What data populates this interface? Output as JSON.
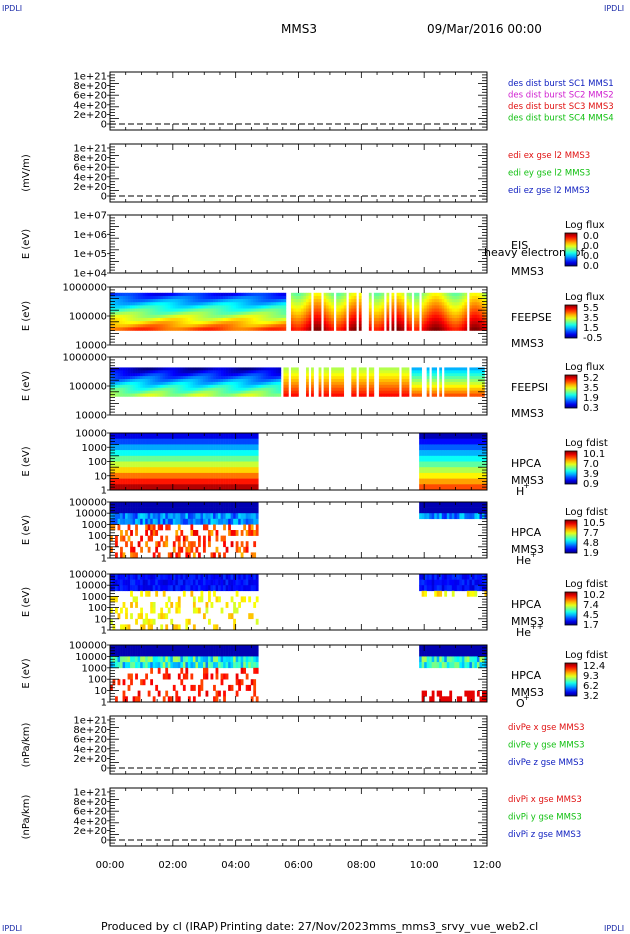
{
  "header": {
    "corner_label": "IPDLI",
    "mission": "MMS3",
    "date_time": "09/Mar/2016 00:00"
  },
  "footer": {
    "produced_by": "Produced by cl (IRAP)",
    "printing_date": "Printing date: 27/Nov/2023",
    "filename": "mms_mms3_srvy_vue_web2.cl"
  },
  "colors": {
    "red": "#e01010",
    "magenta": "#d020d0",
    "green": "#10c010",
    "blue": "#1020c0"
  },
  "chart_data": [
    {
      "type": "line",
      "ylabel": "",
      "yticks": [
        "1e+21",
        "8e+20",
        "6e+20",
        "4e+20",
        "2e+20",
        "0"
      ],
      "legend": [
        {
          "text": "des dist burst SC1 MMS1",
          "color": "#1020c0"
        },
        {
          "text": "des dist burst SC2 MMS2",
          "color": "#d020d0"
        },
        {
          "text": "des dist burst SC3 MMS3",
          "color": "#e01010"
        },
        {
          "text": "des dist burst SC4 MMS4",
          "color": "#10c010"
        }
      ]
    },
    {
      "type": "line",
      "ylabel": "(mV/m)",
      "yticks": [
        "1e+21",
        "8e+20",
        "6e+20",
        "4e+20",
        "2e+20",
        "0"
      ],
      "legend": [
        {
          "text": "edi ex gse l2 MMS3",
          "color": "#e01010"
        },
        {
          "text": "edi ey gse l2 MMS3",
          "color": "#10c010"
        },
        {
          "text": "edi ez gse l2 MMS3",
          "color": "#1020c0"
        }
      ]
    },
    {
      "type": "heatmap",
      "ylabel": "E (eV)",
      "yticks": [
        "1e+07",
        "1e+06",
        "1e+05",
        "1e+04"
      ],
      "instrument": "EIS",
      "extra": "heavy electron tof",
      "spacecraft": "MMS3",
      "cbar_title": "Log flux",
      "cbar_ticks": [
        "0.0",
        "0.0",
        "0.0",
        "0.0"
      ]
    },
    {
      "type": "heatmap",
      "ylabel": "E (eV)",
      "yticks": [
        "1000000",
        "100000",
        "10000"
      ],
      "instrument": "FEEPSE",
      "spacecraft": "MMS3",
      "cbar_title": "Log flux",
      "cbar_ticks": [
        "5.5",
        "3.5",
        "1.5",
        "-0.5"
      ]
    },
    {
      "type": "heatmap",
      "ylabel": "E (eV)",
      "yticks": [
        "1000000",
        "100000",
        "10000"
      ],
      "instrument": "FEEPSI",
      "spacecraft": "MMS3",
      "cbar_title": "Log flux",
      "cbar_ticks": [
        "5.2",
        "3.5",
        "1.9",
        "0.3"
      ]
    },
    {
      "type": "heatmap",
      "ylabel": "E (eV)",
      "yticks": [
        "10000",
        "1000",
        "100",
        "10",
        "1"
      ],
      "instrument": "HPCA",
      "spacecraft": "MMS3",
      "species": "H",
      "species_sup": "+",
      "cbar_title": "Log fdist",
      "cbar_ticks": [
        "10.1",
        "7.0",
        "3.9",
        "0.9"
      ]
    },
    {
      "type": "heatmap",
      "ylabel": "E (eV)",
      "yticks": [
        "100000",
        "10000",
        "1000",
        "100",
        "10",
        "1"
      ],
      "instrument": "HPCA",
      "spacecraft": "MMS3",
      "species": "He",
      "species_sup": "+",
      "cbar_title": "Log fdist",
      "cbar_ticks": [
        "10.5",
        "7.7",
        "4.8",
        "1.9"
      ]
    },
    {
      "type": "heatmap",
      "ylabel": "E (eV)",
      "yticks": [
        "100000",
        "10000",
        "1000",
        "100",
        "10",
        "1"
      ],
      "instrument": "HPCA",
      "spacecraft": "MMS3",
      "species": "He",
      "species_sup": "++",
      "cbar_title": "Log fdist",
      "cbar_ticks": [
        "10.2",
        "7.4",
        "4.5",
        "1.7"
      ]
    },
    {
      "type": "heatmap",
      "ylabel": "E (eV)",
      "yticks": [
        "100000",
        "10000",
        "1000",
        "100",
        "10",
        "1"
      ],
      "instrument": "HPCA",
      "spacecraft": "MMS3",
      "species": "O",
      "species_sup": "+",
      "cbar_title": "Log fdist",
      "cbar_ticks": [
        "12.4",
        "9.3",
        "6.2",
        "3.2"
      ]
    },
    {
      "type": "line",
      "ylabel": "(nPa/km)",
      "yticks": [
        "1e+21",
        "8e+20",
        "6e+20",
        "4e+20",
        "2e+20",
        "0"
      ],
      "legend": [
        {
          "text": "divPe x gse MMS3",
          "color": "#e01010"
        },
        {
          "text": "divPe y gse MMS3",
          "color": "#10c010"
        },
        {
          "text": "divPe z gse MMS3",
          "color": "#1020c0"
        }
      ]
    },
    {
      "type": "line",
      "ylabel": "(nPa/km)",
      "yticks": [
        "1e+21",
        "8e+20",
        "6e+20",
        "4e+20",
        "2e+20",
        "0"
      ],
      "legend": [
        {
          "text": "divPi x gse MMS3",
          "color": "#e01010"
        },
        {
          "text": "divPi y gse MMS3",
          "color": "#10c010"
        },
        {
          "text": "divPi z gse MMS3",
          "color": "#1020c0"
        }
      ]
    }
  ],
  "xaxis": {
    "ticks": [
      "00:00",
      "02:00",
      "04:00",
      "06:00",
      "08:00",
      "10:00",
      "12:00"
    ]
  }
}
